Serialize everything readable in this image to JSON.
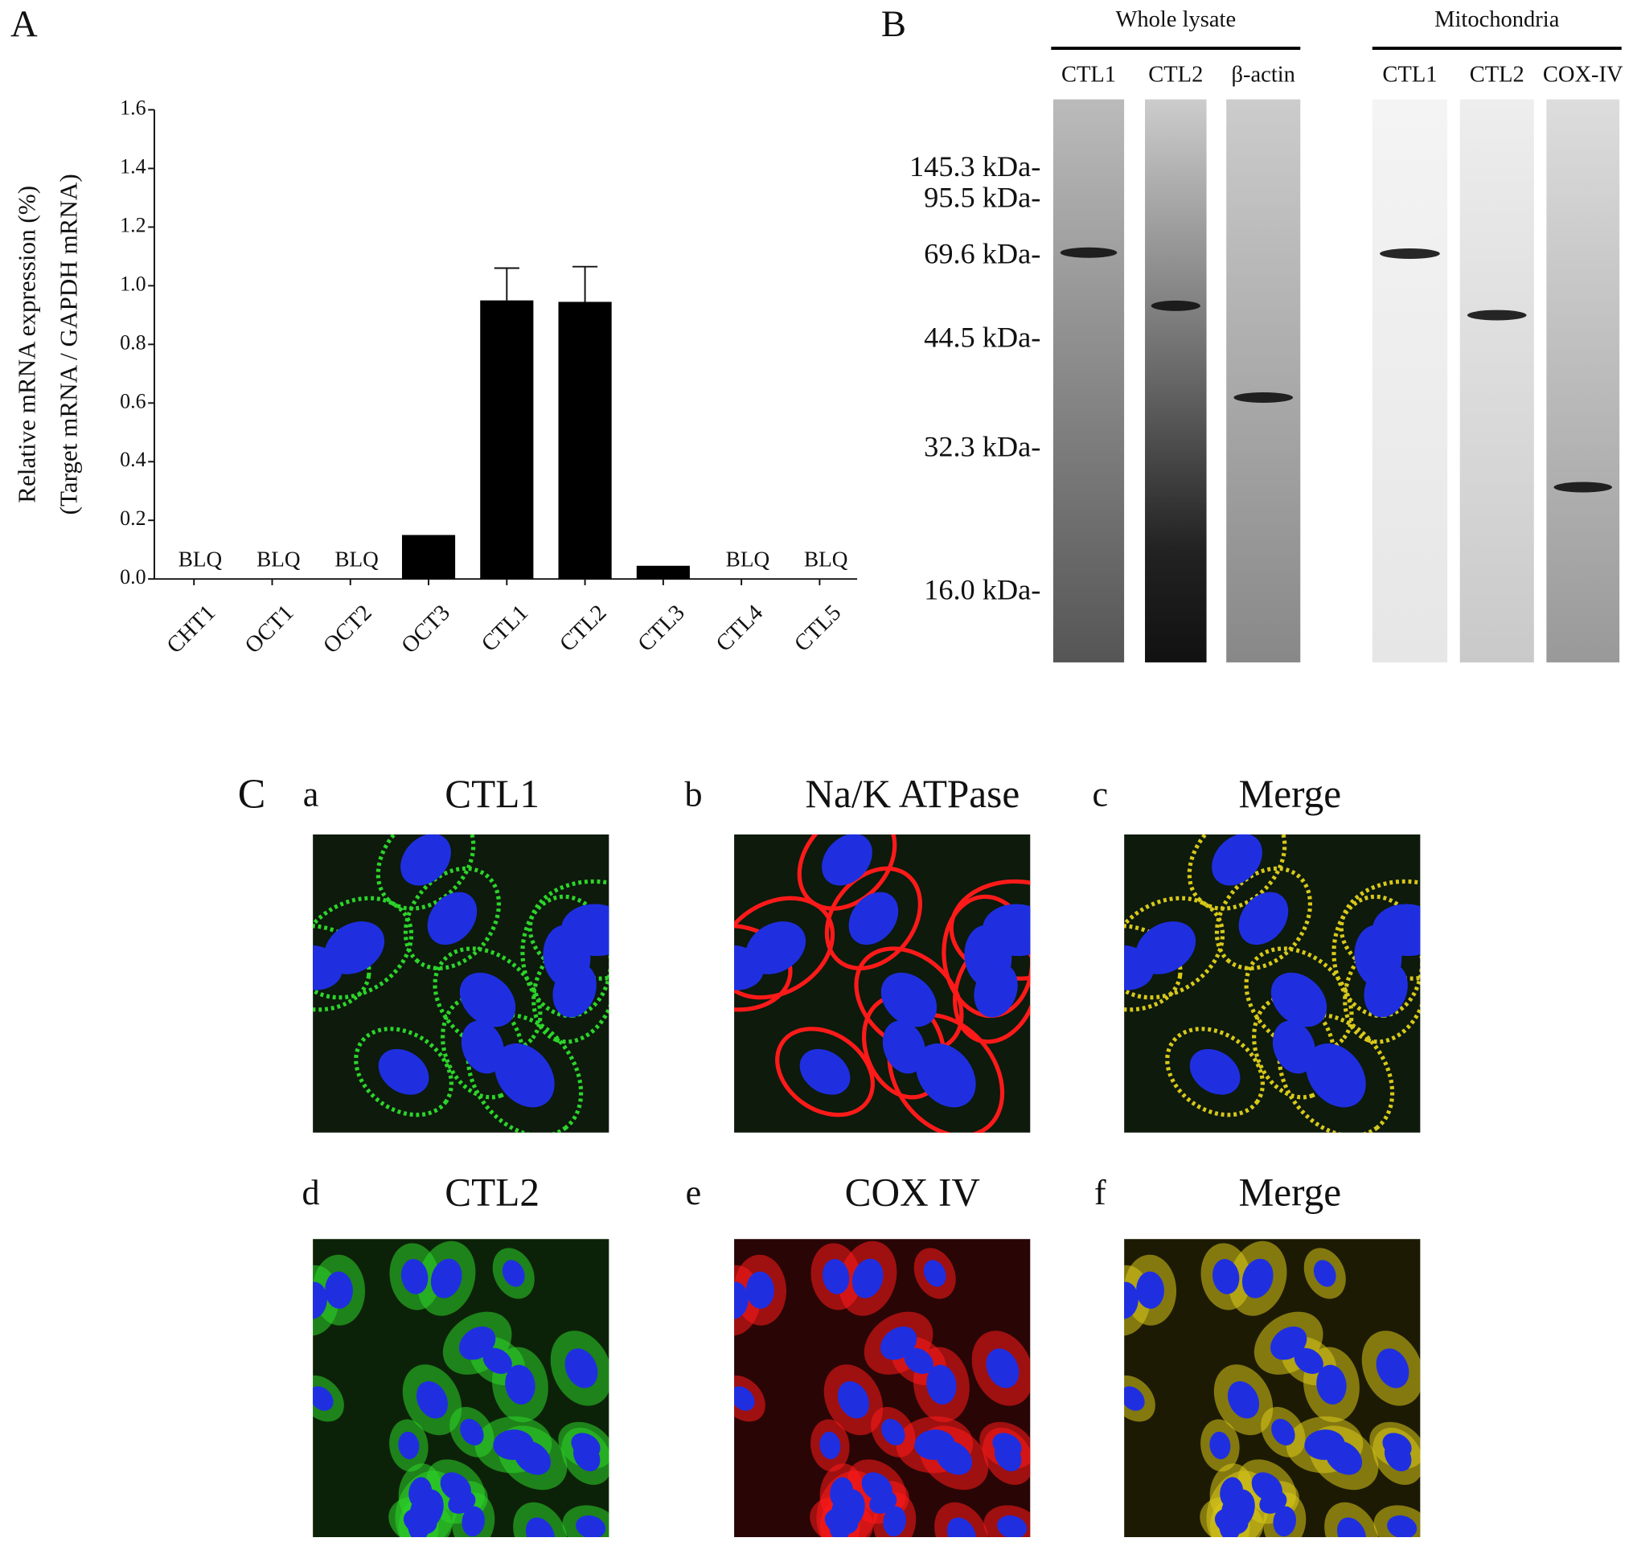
{
  "panel_a": {
    "letter": "A",
    "chart_data": {
      "type": "bar",
      "ylabel": [
        "Relative mRNA expression (%)",
        "(Target mRNA / GAPDH mRNA)"
      ],
      "categories": [
        "CHT1",
        "OCT1",
        "OCT2",
        "OCT3",
        "CTL1",
        "CTL2",
        "CTL3",
        "CTL4",
        "CTL5"
      ],
      "values": [
        null,
        null,
        null,
        0.15,
        0.95,
        0.945,
        0.045,
        null,
        null
      ],
      "value_labels": [
        "BLQ",
        "BLQ",
        "BLQ",
        null,
        null,
        null,
        null,
        "BLQ",
        "BLQ"
      ],
      "errors": [
        null,
        null,
        null,
        null,
        0.11,
        0.12,
        null,
        null,
        null
      ],
      "color": "#000000",
      "ylim": [
        0,
        1.6
      ],
      "yticks": [
        {
          "value": 0,
          "label": "0.0"
        },
        0.2,
        0.4,
        0.6,
        0.8,
        {
          "value": 1,
          "label": "1.0"
        },
        1.2,
        1.4,
        1.6
      ]
    }
  },
  "panel_b": {
    "letter": "B",
    "groups": [
      {
        "title": "Whole lysate",
        "lanes": [
          "CTL1",
          "CTL2",
          "β-actin"
        ]
      },
      {
        "title": "Mitochondria",
        "lanes": [
          "CTL1",
          "CTL2",
          "COX-IV"
        ]
      }
    ],
    "markers": [
      "145.3 kDa-",
      "95.5 kDa-",
      "69.6 kDa-",
      "44.5 kDa-",
      "32.3 kDa-",
      "16.0 kDa-"
    ]
  },
  "panel_c": {
    "letter": "C",
    "panels": [
      {
        "letter": "a",
        "title": "CTL1"
      },
      {
        "letter": "b",
        "title": "Na/K ATPase"
      },
      {
        "letter": "c",
        "title": "Merge"
      },
      {
        "letter": "d",
        "title": "CTL2"
      },
      {
        "letter": "e",
        "title": "COX IV"
      },
      {
        "letter": "f",
        "title": "Merge"
      }
    ]
  }
}
